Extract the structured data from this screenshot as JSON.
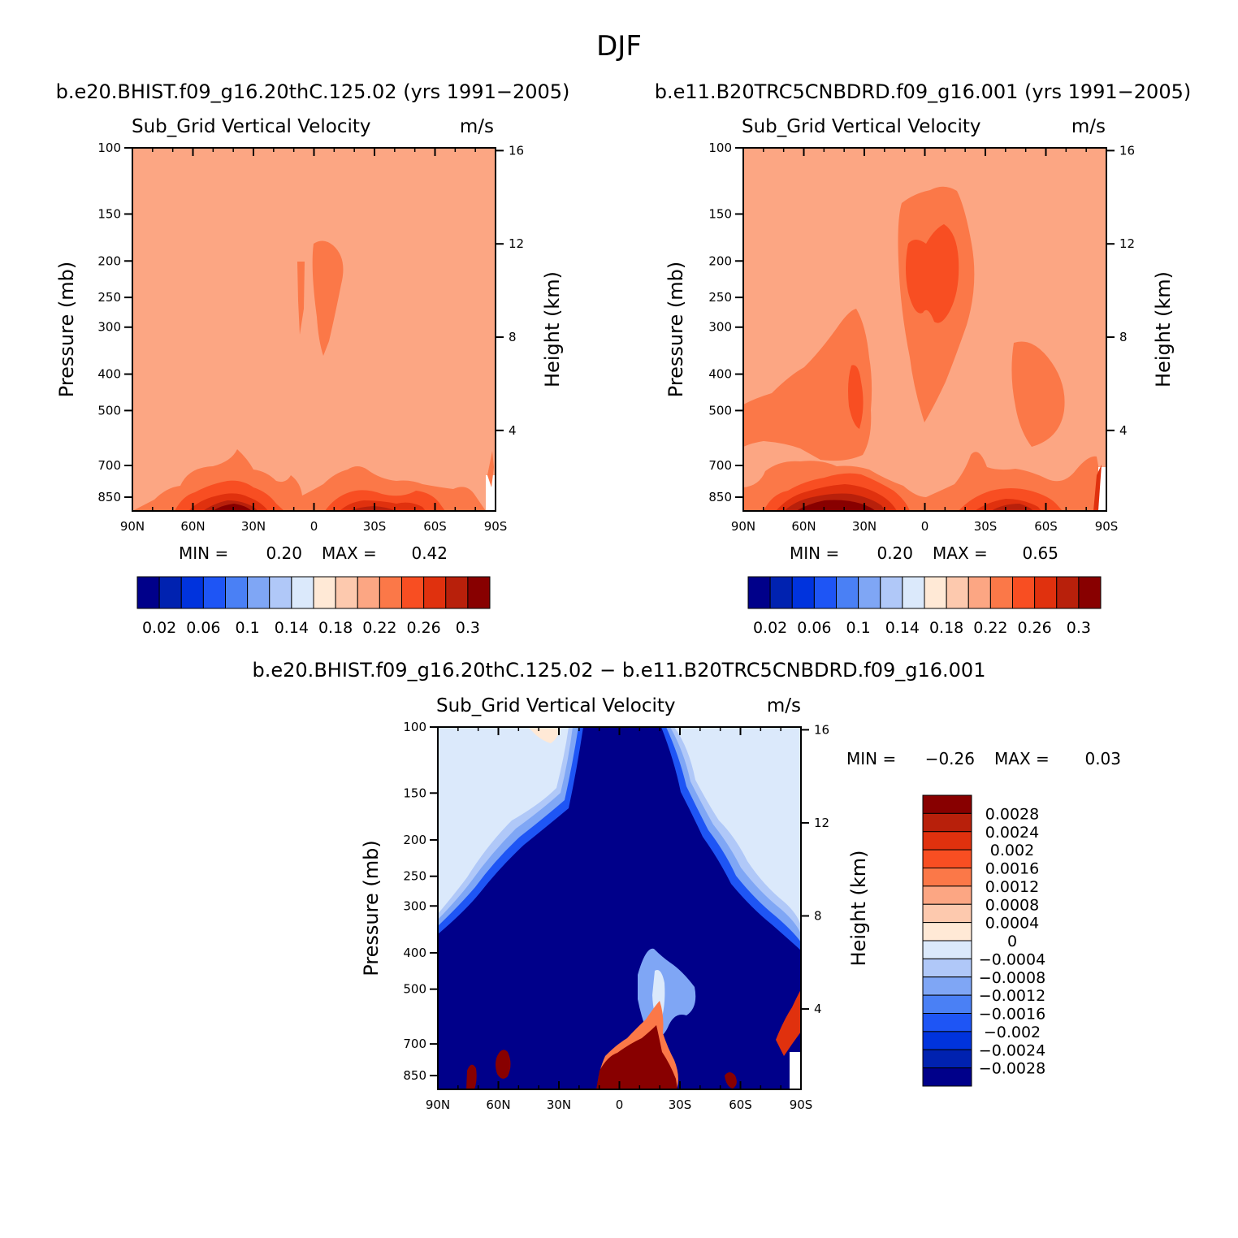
{
  "figure": {
    "title": "DJF",
    "colors": {
      "palette": [
        "#00008a",
        "#0022b0",
        "#0033dd",
        "#1e55f5",
        "#4a80f5",
        "#7fa6f5",
        "#b0c8f8",
        "#dbe9fb",
        "#ffe9d6",
        "#fdc9ae",
        "#fca683",
        "#fb7848",
        "#f84e22",
        "#e0310e",
        "#b8200b",
        "#880000"
      ],
      "bg_left": "#fca683",
      "bg_right": "#fca683",
      "bg_diff": "#00008a",
      "diff_light": "#dbe9fb"
    }
  },
  "panels": [
    {
      "run_label": "b.e20.BHIST.f09_g16.20thC.125.02 (yrs 1991−2005)",
      "variable": "Sub_Grid Vertical Velocity",
      "units": "m/s",
      "min_label": "MIN =",
      "min_value": "0.20",
      "max_label": "MAX =",
      "max_value": "0.42"
    },
    {
      "run_label": "b.e11.B20TRC5CNBDRD.f09_g16.001 (yrs 1991−2005)",
      "variable": "Sub_Grid Vertical Velocity",
      "units": "m/s",
      "min_label": "MIN =",
      "min_value": "0.20",
      "max_label": "MAX =",
      "max_value": "0.65"
    },
    {
      "run_label": "b.e20.BHIST.f09_g16.20thC.125.02 − b.e11.B20TRC5CNBDRD.f09_g16.001",
      "variable": "Sub_Grid Vertical Velocity",
      "units": "m/s",
      "min_label": "MIN =",
      "min_value": "−0.26",
      "max_label": "MAX =",
      "max_value": "0.03"
    }
  ],
  "chart_data": [
    {
      "type": "heatmap",
      "title": "Sub_Grid Vertical Velocity",
      "units": "m/s",
      "xlabel": "",
      "ylabel": "Pressure (mb)",
      "y2label": "Height (km)",
      "x_ticks": [
        "90N",
        "60N",
        "30N",
        "0",
        "30S",
        "60S",
        "90S"
      ],
      "x_range": [
        90,
        -90
      ],
      "y_ticks": [
        100,
        150,
        200,
        250,
        300,
        400,
        500,
        700,
        850
      ],
      "y_range": [
        100,
        925
      ],
      "y2_ticks": [
        16,
        12,
        8,
        4
      ],
      "min": 0.2,
      "max": 0.42,
      "colorbar_labels": [
        "0.02",
        "0.06",
        "0.1",
        "0.14",
        "0.18",
        "0.22",
        "0.26",
        "0.3"
      ]
    },
    {
      "type": "heatmap",
      "title": "Sub_Grid Vertical Velocity",
      "units": "m/s",
      "xlabel": "",
      "ylabel": "Pressure (mb)",
      "y2label": "Height (km)",
      "x_ticks": [
        "90N",
        "60N",
        "30N",
        "0",
        "30S",
        "60S",
        "90S"
      ],
      "x_range": [
        90,
        -90
      ],
      "y_ticks": [
        100,
        150,
        200,
        250,
        300,
        400,
        500,
        700,
        850
      ],
      "y_range": [
        100,
        925
      ],
      "y2_ticks": [
        16,
        12,
        8,
        4
      ],
      "min": 0.2,
      "max": 0.65,
      "colorbar_labels": [
        "0.02",
        "0.06",
        "0.1",
        "0.14",
        "0.18",
        "0.22",
        "0.26",
        "0.3"
      ]
    },
    {
      "type": "heatmap",
      "title": "Sub_Grid Vertical Velocity",
      "units": "m/s",
      "xlabel": "",
      "ylabel": "Pressure (mb)",
      "y2label": "Height (km)",
      "x_ticks": [
        "90N",
        "60N",
        "30N",
        "0",
        "30S",
        "60S",
        "90S"
      ],
      "x_range": [
        90,
        -90
      ],
      "y_ticks": [
        100,
        150,
        200,
        250,
        300,
        400,
        500,
        700,
        850
      ],
      "y_range": [
        100,
        925
      ],
      "y2_ticks": [
        16,
        12,
        8,
        4
      ],
      "min": -0.26,
      "max": 0.03,
      "colorbar_labels": [
        "0.0028",
        "0.0024",
        "0.002",
        "0.0016",
        "0.0012",
        "0.0008",
        "0.0004",
        "0",
        "−0.0004",
        "−0.0008",
        "−0.0012",
        "−0.0016",
        "−0.002",
        "−0.0024",
        "−0.0028"
      ]
    }
  ]
}
